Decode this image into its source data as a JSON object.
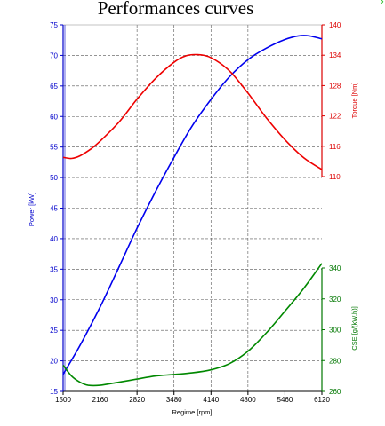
{
  "chart_data": {
    "type": "line",
    "title": "Performances curves",
    "xlabel": "Regime [rpm]",
    "xlim": [
      1500,
      6120
    ],
    "x_ticks": [
      "1500",
      "2160",
      "2820",
      "3480",
      "4140",
      "4800",
      "5460",
      "6120"
    ],
    "grid": true,
    "axes": {
      "power": {
        "label": "Power [kW]",
        "side": "left",
        "color": "#0000cc",
        "range": [
          15,
          75
        ],
        "ticks": [
          "15",
          "20",
          "25",
          "30",
          "35",
          "40",
          "45",
          "50",
          "55",
          "60",
          "65",
          "70",
          "75"
        ]
      },
      "torque": {
        "label": "Torque [Nm]",
        "side": "right-top",
        "color": "#dd0000",
        "range": [
          110,
          140
        ],
        "ticks": [
          "110",
          "116",
          "122",
          "128",
          "134",
          "140"
        ]
      },
      "cse": {
        "label": "CSE [g/(kW.h)]",
        "side": "right-bottom",
        "color": "#007700",
        "range": [
          260,
          340
        ],
        "ticks": [
          "260",
          "280",
          "300",
          "320",
          "340"
        ]
      }
    },
    "series": [
      {
        "axis": "power",
        "color": "#0000ee",
        "x": [
          1500,
          1800,
          2160,
          2500,
          2820,
          3150,
          3480,
          3800,
          4140,
          4470,
          4800,
          5130,
          5460,
          5700,
          5900,
          6120
        ],
        "values": [
          17.8,
          22.5,
          28.8,
          35.4,
          41.7,
          47.7,
          53.3,
          58.4,
          62.8,
          66.5,
          69.3,
          71.2,
          72.6,
          73.2,
          73.2,
          72.7
        ]
      },
      {
        "axis": "torque",
        "color": "#ee0000",
        "x": [
          1500,
          1650,
          1800,
          2000,
          2160,
          2500,
          2820,
          3150,
          3480,
          3700,
          3900,
          4140,
          4470,
          4800,
          5130,
          5460,
          5800,
          6120
        ],
        "values": [
          113.8,
          113.6,
          114.1,
          115.5,
          117.0,
          120.8,
          125.3,
          129.4,
          132.6,
          133.9,
          134.1,
          133.5,
          130.9,
          126.5,
          121.6,
          117.3,
          113.7,
          111.4
        ]
      },
      {
        "axis": "cse",
        "color": "#008800",
        "x": [
          1500,
          1650,
          1800,
          1950,
          2160,
          2500,
          2820,
          3150,
          3480,
          3800,
          4140,
          4470,
          4800,
          5130,
          5460,
          5800,
          6120
        ],
        "values": [
          277,
          270,
          266,
          264,
          264,
          266,
          268,
          270,
          271,
          272,
          274,
          278,
          286,
          298,
          312,
          327,
          343
        ]
      }
    ]
  },
  "corner_mark": "›"
}
